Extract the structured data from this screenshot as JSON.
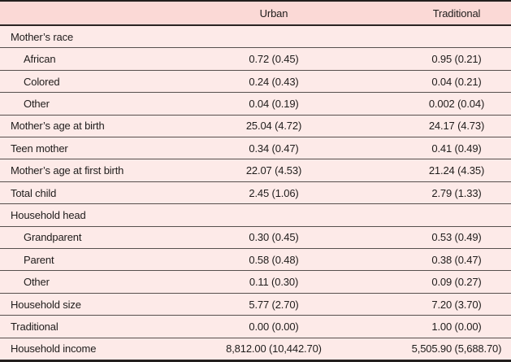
{
  "table": {
    "colors": {
      "header_bg": "#fbd9d6",
      "body_bg": "#fdeae8",
      "rule_dark": "#231f1e",
      "row_line": "#57504e",
      "text": "#1f1c1b"
    },
    "header": {
      "label_col": "",
      "urban": "Urban",
      "traditional": "Traditional"
    },
    "rows": [
      {
        "label": "Mother’s race",
        "indent": false,
        "urban": "",
        "traditional": ""
      },
      {
        "label": "African",
        "indent": true,
        "urban": "0.72 (0.45)",
        "traditional": "0.95 (0.21)"
      },
      {
        "label": "Colored",
        "indent": true,
        "urban": "0.24 (0.43)",
        "traditional": "0.04 (0.21)"
      },
      {
        "label": "Other",
        "indent": true,
        "urban": "0.04 (0.19)",
        "traditional": "0.002 (0.04)"
      },
      {
        "label": "Mother’s age at birth",
        "indent": false,
        "urban": "25.04 (4.72)",
        "traditional": "24.17 (4.73)"
      },
      {
        "label": "Teen mother",
        "indent": false,
        "urban": "0.34 (0.47)",
        "traditional": "0.41 (0.49)"
      },
      {
        "label": "Mother’s age at first birth",
        "indent": false,
        "urban": "22.07 (4.53)",
        "traditional": "21.24 (4.35)"
      },
      {
        "label": "Total child",
        "indent": false,
        "urban": "2.45 (1.06)",
        "traditional": "2.79 (1.33)"
      },
      {
        "label": "Household head",
        "indent": false,
        "urban": "",
        "traditional": ""
      },
      {
        "label": "Grandparent",
        "indent": true,
        "urban": "0.30 (0.45)",
        "traditional": "0.53 (0.49)"
      },
      {
        "label": "Parent",
        "indent": true,
        "urban": "0.58 (0.48)",
        "traditional": "0.38 (0.47)"
      },
      {
        "label": "Other",
        "indent": true,
        "urban": "0.11 (0.30)",
        "traditional": "0.09 (0.27)"
      },
      {
        "label": "Household size",
        "indent": false,
        "urban": "5.77 (2.70)",
        "traditional": "7.20 (3.70)"
      },
      {
        "label": "Traditional",
        "indent": false,
        "urban": "0.00 (0.00)",
        "traditional": "1.00 (0.00)"
      },
      {
        "label": "Household income",
        "indent": false,
        "urban": "8,812.00 (10,442.70)",
        "traditional": "5,505.90 (5,688.70)"
      }
    ]
  }
}
